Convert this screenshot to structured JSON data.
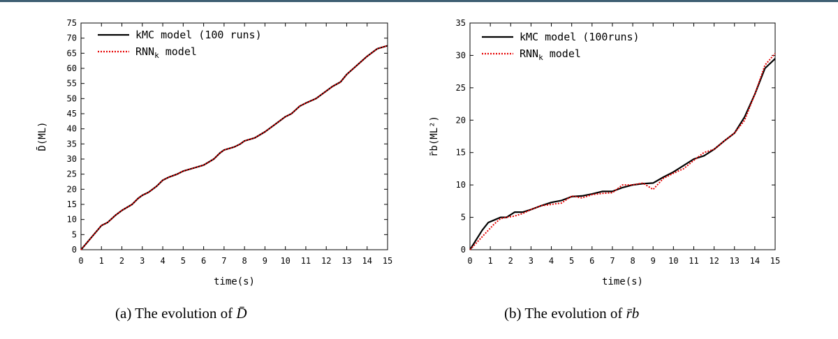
{
  "chart_data": [
    {
      "type": "line",
      "caption": {
        "prefix": "(a)",
        "text": "The evolution of",
        "symbol": "D̄"
      },
      "xlabel": "time(s)",
      "ylabel": "D̄(ML)",
      "xlim": [
        0,
        15
      ],
      "ylim": [
        0,
        75
      ],
      "xticks": [
        0,
        1,
        2,
        3,
        4,
        5,
        6,
        7,
        8,
        9,
        10,
        11,
        12,
        13,
        14,
        15
      ],
      "yticks": [
        0,
        5,
        10,
        15,
        20,
        25,
        30,
        35,
        40,
        45,
        50,
        55,
        60,
        65,
        70,
        75
      ],
      "grid": false,
      "legend_position": "top-left",
      "series": [
        {
          "name": "kMC model (100 runs)",
          "color": "#000000",
          "style": "solid",
          "x": [
            0,
            0.5,
            1,
            1.3,
            1.7,
            2,
            2.5,
            2.8,
            3,
            3.3,
            3.7,
            4,
            4.3,
            4.7,
            5,
            5.5,
            6,
            6.5,
            6.8,
            7,
            7.5,
            7.8,
            8,
            8.5,
            9,
            9.5,
            10,
            10.3,
            10.7,
            11,
            11.5,
            12,
            12.3,
            12.7,
            13,
            13.5,
            14,
            14.5,
            15
          ],
          "y": [
            0,
            4,
            8,
            9,
            11.5,
            13,
            15,
            17,
            18,
            19,
            21,
            23,
            24,
            25,
            26,
            27,
            28,
            30,
            32,
            33,
            34,
            35,
            36,
            37,
            39,
            41.5,
            44,
            45,
            47.5,
            48.5,
            50,
            52.5,
            54,
            55.5,
            58,
            61,
            64,
            66.5,
            67.5
          ]
        },
        {
          "name": "RNN_k model",
          "color": "#e60000",
          "style": "dotted",
          "x": [
            0,
            0.5,
            1,
            1.3,
            1.7,
            2,
            2.5,
            2.8,
            3,
            3.3,
            3.7,
            4,
            4.3,
            4.7,
            5,
            5.5,
            6,
            6.5,
            6.8,
            7,
            7.5,
            7.8,
            8,
            8.5,
            9,
            9.5,
            10,
            10.3,
            10.7,
            11,
            11.5,
            12,
            12.3,
            12.7,
            13,
            13.5,
            14,
            14.5,
            15
          ],
          "y": [
            0,
            4,
            8,
            9,
            11.5,
            13,
            15,
            17,
            18,
            19,
            21,
            23,
            24,
            25,
            26,
            27,
            28,
            30,
            32,
            33,
            34,
            35,
            36,
            37,
            39,
            41.5,
            44,
            45,
            47.5,
            48.5,
            50,
            52.5,
            54,
            55.5,
            58,
            61,
            64,
            66.5,
            67.5
          ]
        }
      ]
    },
    {
      "type": "line",
      "caption": {
        "prefix": "(b)",
        "text": "The evolution of",
        "symbol": "r̄b"
      },
      "xlabel": "time(s)",
      "ylabel": "r̄b(ML²)",
      "xlim": [
        0,
        15
      ],
      "ylim": [
        0,
        35
      ],
      "xticks": [
        0,
        1,
        2,
        3,
        4,
        5,
        6,
        7,
        8,
        9,
        10,
        11,
        12,
        13,
        14,
        15
      ],
      "yticks": [
        0,
        5,
        10,
        15,
        20,
        25,
        30,
        35
      ],
      "grid": false,
      "legend_position": "top-left",
      "series": [
        {
          "name": "kMC model (100runs)",
          "color": "#000000",
          "style": "solid",
          "x": [
            0,
            0.3,
            0.6,
            0.9,
            1.2,
            1.5,
            1.8,
            2.2,
            2.6,
            3,
            3.5,
            4,
            4.5,
            5,
            5.5,
            6,
            6.5,
            7,
            7.5,
            8,
            8.5,
            9,
            9.5,
            10,
            10.5,
            11,
            11.5,
            12,
            12.5,
            13,
            13.5,
            14,
            14.5,
            15
          ],
          "y": [
            0,
            1.5,
            3,
            4.2,
            4.6,
            5,
            5,
            5.8,
            5.8,
            6.2,
            6.8,
            7.3,
            7.6,
            8.2,
            8.3,
            8.6,
            9,
            9,
            9.6,
            10,
            10.2,
            10.3,
            11.2,
            12,
            13,
            14,
            14.5,
            15.5,
            16.8,
            18,
            20.5,
            24,
            28,
            29.5
          ]
        },
        {
          "name": "RNN_k model",
          "color": "#e60000",
          "style": "dotted",
          "x": [
            0,
            0.3,
            0.6,
            0.9,
            1.2,
            1.5,
            1.8,
            2.2,
            2.6,
            3,
            3.5,
            4,
            4.5,
            5,
            5.5,
            6,
            6.5,
            7,
            7.5,
            8,
            8.5,
            9,
            9.5,
            10,
            10.5,
            11,
            11.5,
            12,
            12.5,
            13,
            13.5,
            14,
            14.5,
            15
          ],
          "y": [
            0,
            1,
            2,
            3,
            4,
            4.8,
            5,
            5.2,
            5.6,
            6.2,
            6.8,
            7,
            7.2,
            8.3,
            8,
            8.5,
            8.7,
            8.8,
            10,
            10,
            10.3,
            9.3,
            11,
            11.8,
            12.5,
            13.8,
            15,
            15.5,
            16.8,
            18,
            20,
            24,
            28.5,
            30.3
          ]
        }
      ]
    }
  ]
}
